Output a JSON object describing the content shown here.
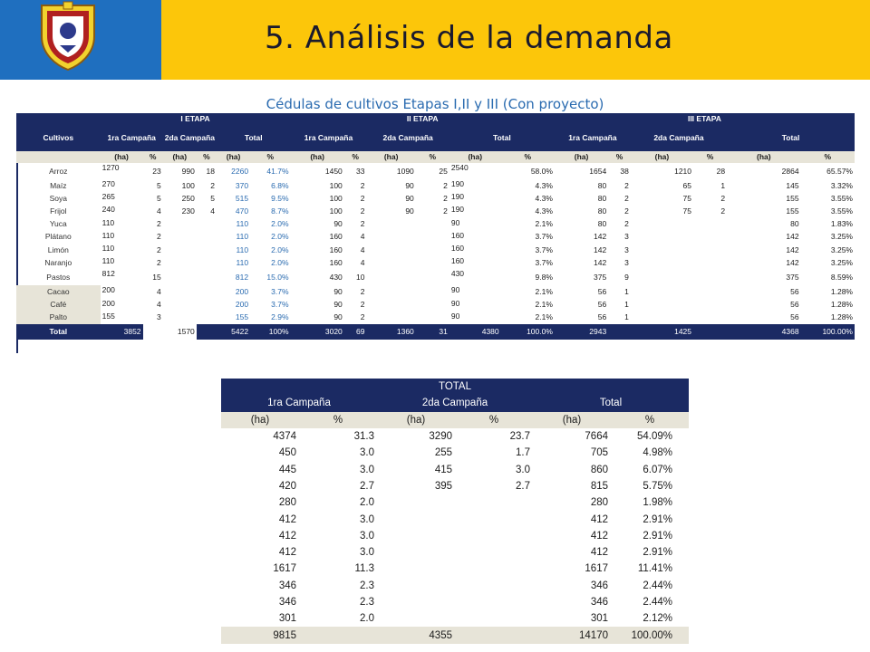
{
  "header": {
    "title": "5. Análisis de la demanda",
    "subtitle": "Cédulas de cultivos Etapas I,II y III (Con proyecto)"
  },
  "colors": {
    "navy": "#1b2a63",
    "gold": "#fcc60a",
    "logo_blue": "#1f6fbf",
    "beige": "#e7e4d8",
    "blue_text": "#2a6bb0"
  },
  "table1": {
    "stage_headers": [
      "I ETAPA",
      "II ETAPA",
      "III ETAPA"
    ],
    "crop_header": "Cultivos",
    "sub_headers": [
      "1ra Campaña",
      "2da Campaña",
      "Total",
      "1ra Campaña",
      "2da Campaña",
      "Total",
      "1ra Campaña",
      "2da Campaña",
      "Total"
    ],
    "units": [
      "(ha)",
      "%",
      "(ha)",
      "%",
      "(ha)",
      "%",
      "(ha)",
      "%",
      "(ha)",
      "%",
      "(ha)",
      "%",
      "(ha)",
      "%",
      "(ha)",
      "%",
      "(ha)",
      "%"
    ],
    "rows": [
      {
        "crop": "Arroz",
        "v": [
          "1270",
          "23",
          "990",
          "18",
          "2260",
          "41.7%",
          "1450",
          "33",
          "1090",
          "25",
          "2540",
          "58.0%",
          "1654",
          "38",
          "1210",
          "28",
          "2864",
          "65.57%"
        ]
      },
      {
        "crop": "Maíz",
        "v": [
          "270",
          "5",
          "100",
          "2",
          "370",
          "6.8%",
          "100",
          "2",
          "90",
          "2",
          "190",
          "4.3%",
          "80",
          "2",
          "65",
          "1",
          "145",
          "3.32%"
        ]
      },
      {
        "crop": "Soya",
        "v": [
          "265",
          "5",
          "250",
          "5",
          "515",
          "9.5%",
          "100",
          "2",
          "90",
          "2",
          "190",
          "4.3%",
          "80",
          "2",
          "75",
          "2",
          "155",
          "3.55%"
        ]
      },
      {
        "crop": "Frijol",
        "v": [
          "240",
          "4",
          "230",
          "4",
          "470",
          "8.7%",
          "100",
          "2",
          "90",
          "2",
          "190",
          "4.3%",
          "80",
          "2",
          "75",
          "2",
          "155",
          "3.55%"
        ]
      },
      {
        "crop": "Yuca",
        "v": [
          "110",
          "2",
          "",
          "",
          "110",
          "2.0%",
          "90",
          "2",
          "",
          "",
          "90",
          "2.1%",
          "80",
          "2",
          "",
          "",
          "80",
          "1.83%"
        ]
      },
      {
        "crop": "Plátano",
        "v": [
          "110",
          "2",
          "",
          "",
          "110",
          "2.0%",
          "160",
          "4",
          "",
          "",
          "160",
          "3.7%",
          "142",
          "3",
          "",
          "",
          "142",
          "3.25%"
        ]
      },
      {
        "crop": "Limón",
        "v": [
          "110",
          "2",
          "",
          "",
          "110",
          "2.0%",
          "160",
          "4",
          "",
          "",
          "160",
          "3.7%",
          "142",
          "3",
          "",
          "",
          "142",
          "3.25%"
        ]
      },
      {
        "crop": "Naranjo",
        "v": [
          "110",
          "2",
          "",
          "",
          "110",
          "2.0%",
          "160",
          "4",
          "",
          "",
          "160",
          "3.7%",
          "142",
          "3",
          "",
          "",
          "142",
          "3.25%"
        ]
      },
      {
        "crop": "Pastos",
        "v": [
          "812",
          "15",
          "",
          "",
          "812",
          "15.0%",
          "430",
          "10",
          "",
          "",
          "430",
          "9.8%",
          "375",
          "9",
          "",
          "",
          "375",
          "8.59%"
        ]
      },
      {
        "crop": "Cacao",
        "v": [
          "200",
          "4",
          "",
          "",
          "200",
          "3.7%",
          "90",
          "2",
          "",
          "",
          "90",
          "2.1%",
          "56",
          "1",
          "",
          "",
          "56",
          "1.28%"
        ]
      },
      {
        "crop": "Café",
        "v": [
          "200",
          "4",
          "",
          "",
          "200",
          "3.7%",
          "90",
          "2",
          "",
          "",
          "90",
          "2.1%",
          "56",
          "1",
          "",
          "",
          "56",
          "1.28%"
        ]
      },
      {
        "crop": "Palto",
        "v": [
          "155",
          "3",
          "",
          "",
          "155",
          "2.9%",
          "90",
          "2",
          "",
          "",
          "90",
          "2.1%",
          "56",
          "1",
          "",
          "",
          "56",
          "1.28%"
        ]
      }
    ],
    "total": {
      "label": "Total",
      "v": [
        "3852",
        "",
        "1570",
        "",
        "5422",
        "100%",
        "3020",
        "69",
        "1360",
        "31",
        "4380",
        "100.0%",
        "2943",
        "",
        "1425",
        "",
        "4368",
        "100.00%"
      ]
    }
  },
  "table2": {
    "title": "TOTAL",
    "sub_headers": [
      "1ra Campaña",
      "2da Campaña",
      "Total"
    ],
    "units": [
      "(ha)",
      "%",
      "(ha)",
      "%",
      "(ha)",
      "%"
    ],
    "rows": [
      [
        "4374",
        "31.3",
        "3290",
        "23.7",
        "7664",
        "54.09%"
      ],
      [
        "450",
        "3.0",
        "255",
        "1.7",
        "705",
        "4.98%"
      ],
      [
        "445",
        "3.0",
        "415",
        "3.0",
        "860",
        "6.07%"
      ],
      [
        "420",
        "2.7",
        "395",
        "2.7",
        "815",
        "5.75%"
      ],
      [
        "280",
        "2.0",
        "",
        "",
        "280",
        "1.98%"
      ],
      [
        "412",
        "3.0",
        "",
        "",
        "412",
        "2.91%"
      ],
      [
        "412",
        "3.0",
        "",
        "",
        "412",
        "2.91%"
      ],
      [
        "412",
        "3.0",
        "",
        "",
        "412",
        "2.91%"
      ],
      [
        "1617",
        "11.3",
        "",
        "",
        "1617",
        "11.41%"
      ],
      [
        "346",
        "2.3",
        "",
        "",
        "346",
        "2.44%"
      ],
      [
        "346",
        "2.3",
        "",
        "",
        "346",
        "2.44%"
      ],
      [
        "301",
        "2.0",
        "",
        "",
        "301",
        "2.12%"
      ]
    ],
    "total": [
      "9815",
      "",
      "4355",
      "",
      "14170",
      "100.00%"
    ]
  }
}
